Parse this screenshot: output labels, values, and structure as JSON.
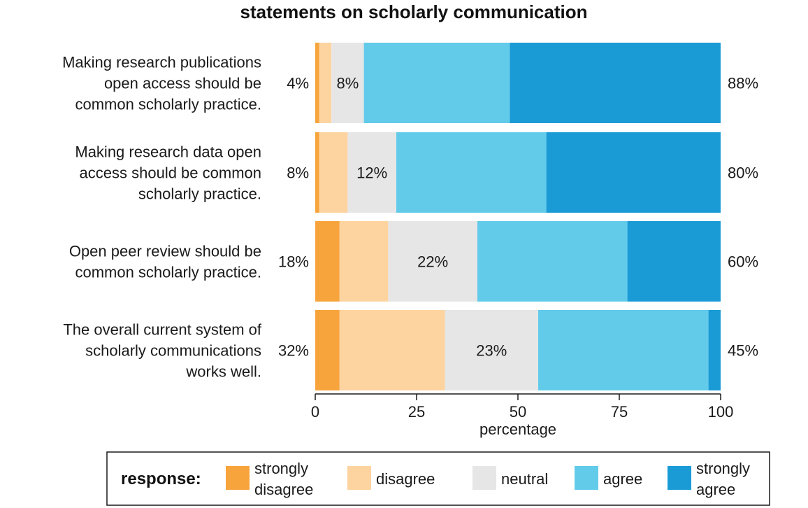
{
  "chart_data": {
    "type": "bar",
    "orientation": "horizontal",
    "stacked": true,
    "title": "statements on scholarly communication",
    "xlabel": "percentage",
    "xlim": [
      0,
      100
    ],
    "xticks": [
      0,
      25,
      50,
      75,
      100
    ],
    "categories": [
      [
        "Making research publications",
        "open access should be",
        "common scholarly practice."
      ],
      [
        "Making research data open",
        "access should be common",
        "scholarly practice."
      ],
      [
        "Open peer review should be",
        "common scholarly practice."
      ],
      [
        "The overall current system of",
        "scholarly communications",
        "works well."
      ]
    ],
    "series": [
      {
        "name": "strongly disagree",
        "name_lines": [
          "strongly",
          "disagree"
        ],
        "color": "#f7a43c",
        "values": [
          1,
          1,
          6,
          6
        ]
      },
      {
        "name": "disagree",
        "name_lines": [
          "disagree"
        ],
        "color": "#fdd4a0",
        "values": [
          3,
          7,
          12,
          26
        ]
      },
      {
        "name": "neutral",
        "name_lines": [
          "neutral"
        ],
        "color": "#e6e6e6",
        "values": [
          8,
          12,
          22,
          23
        ]
      },
      {
        "name": "agree",
        "name_lines": [
          "agree"
        ],
        "color": "#62cbea",
        "values": [
          36,
          37,
          37,
          42
        ]
      },
      {
        "name": "strongly agree",
        "name_lines": [
          "strongly",
          "agree"
        ],
        "color": "#1a9bd6",
        "values": [
          52,
          43,
          23,
          3
        ]
      }
    ],
    "left_labels": [
      "4%",
      "8%",
      "18%",
      "32%"
    ],
    "center_labels": [
      "8%",
      "12%",
      "22%",
      "23%"
    ],
    "right_labels": [
      "88%",
      "80%",
      "60%",
      "45%"
    ],
    "legend": {
      "title": "response:",
      "placement": "bottom"
    }
  }
}
